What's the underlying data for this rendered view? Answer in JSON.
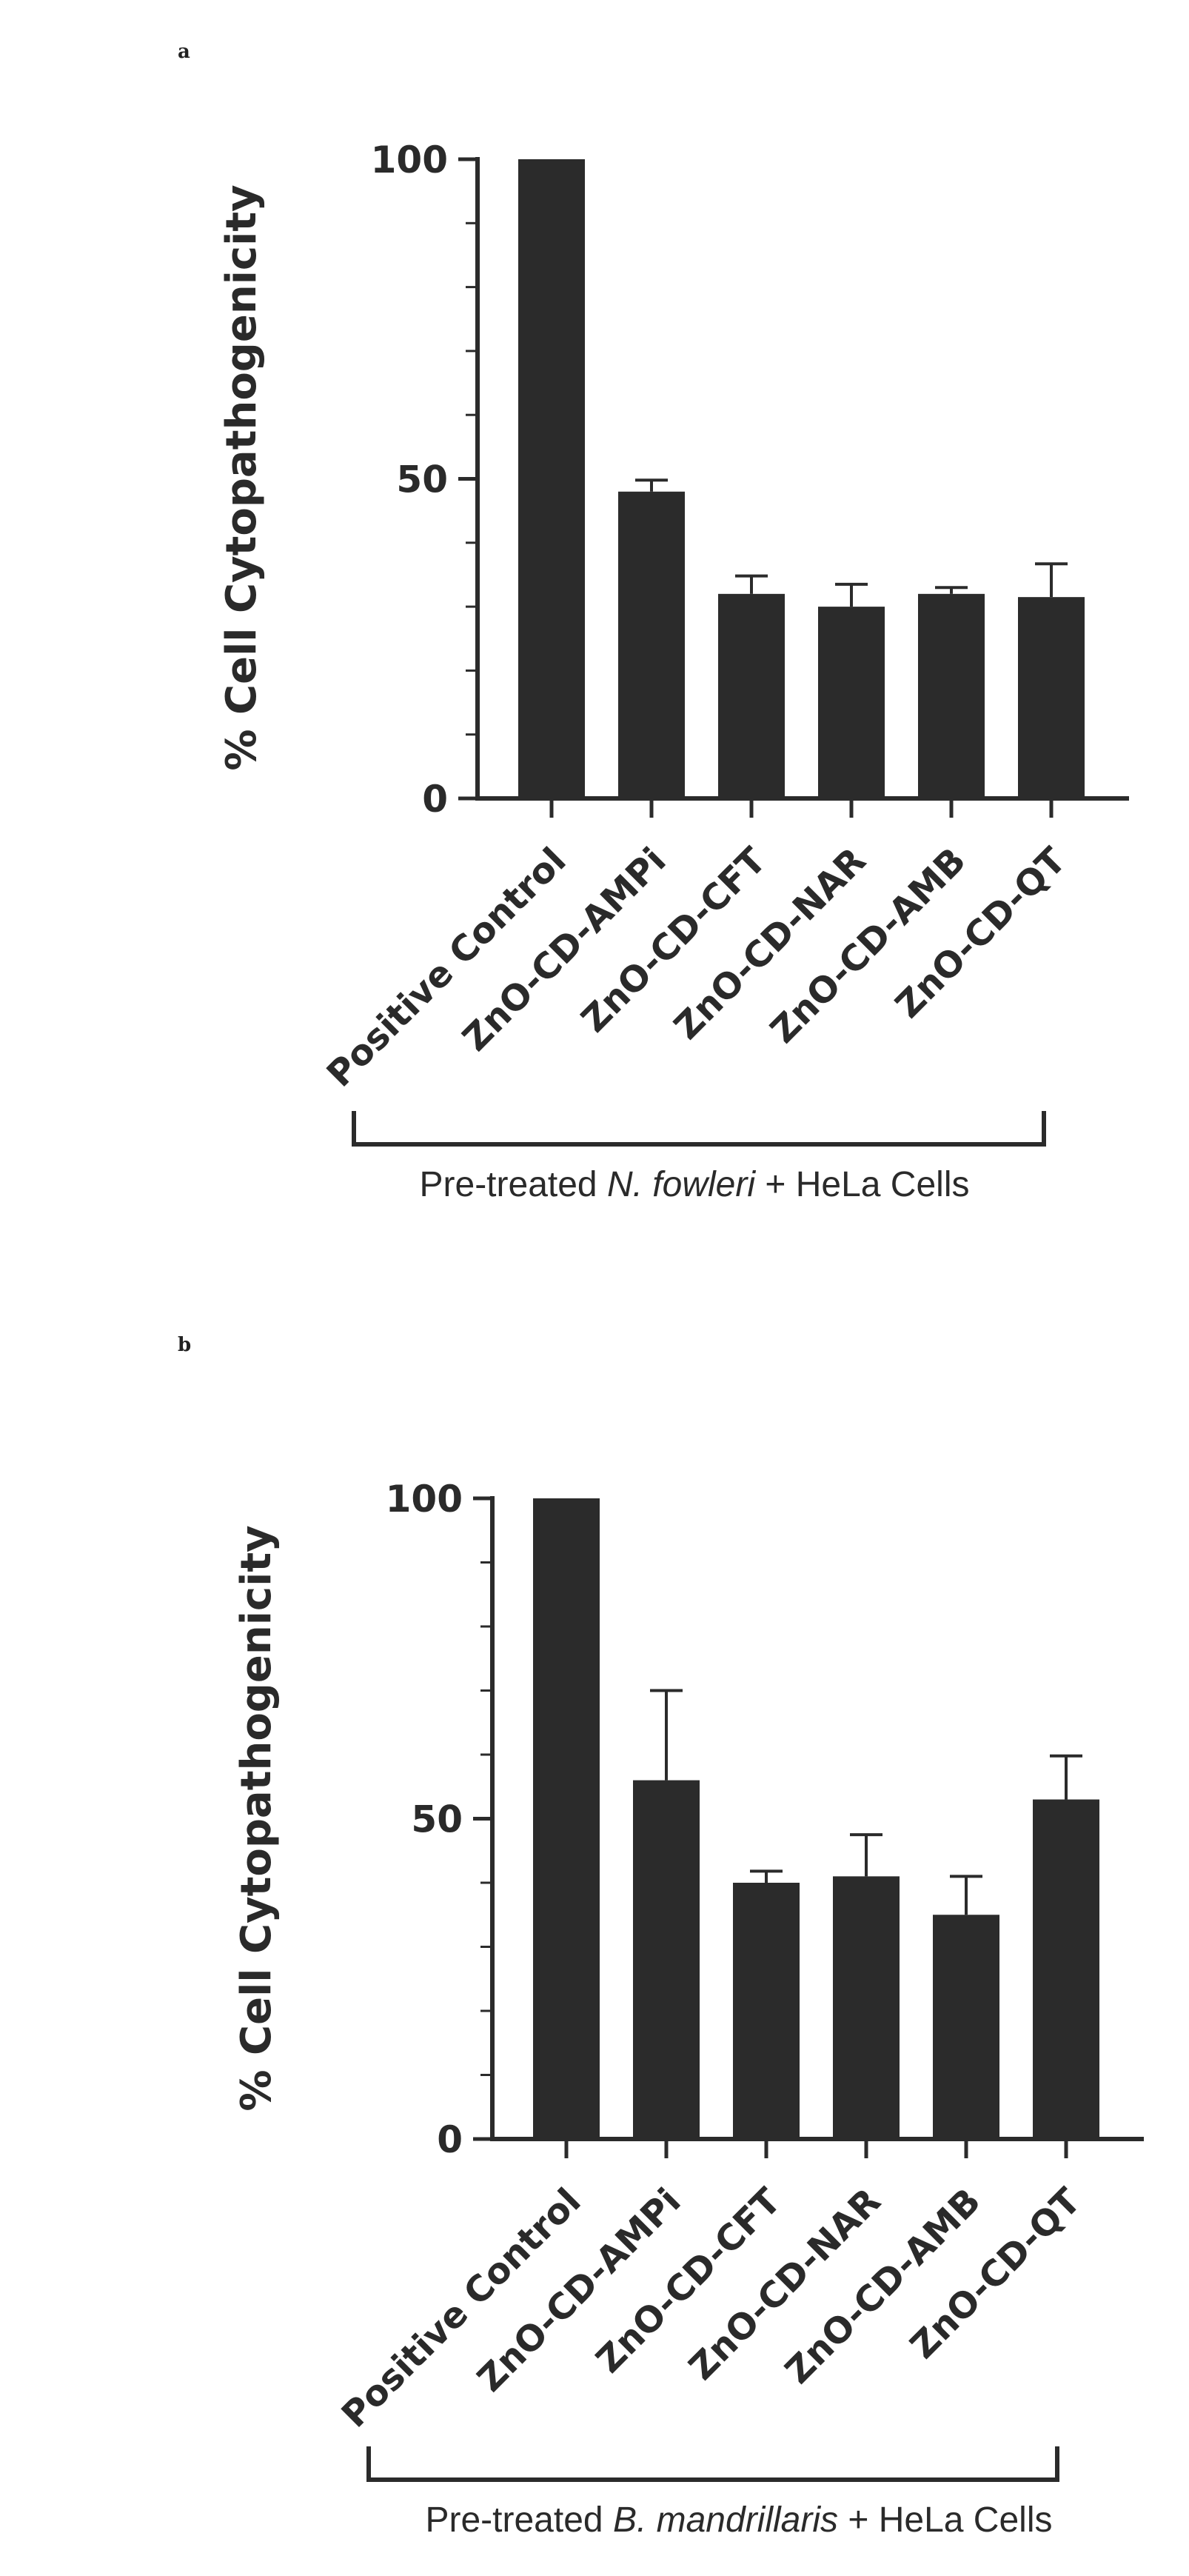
{
  "chart_data": [
    {
      "panel": "a",
      "type": "bar",
      "categories": [
        "Positive Control",
        "ZnO-CD-AMPi",
        "ZnO-CD-CFT",
        "ZnO-CD-NAR",
        "ZnO-CD-AMB",
        "ZnO-CD-QT"
      ],
      "values": [
        100,
        48,
        32,
        30,
        32,
        31.5
      ],
      "errors": [
        0,
        1.8,
        2.8,
        3.5,
        1.0,
        5.2
      ],
      "ylabel": "% Cell Cytopathogenicity",
      "ylim": [
        0,
        100
      ],
      "yticks": [
        "0",
        "50",
        "100"
      ],
      "group_label": {
        "prefix": "Pre-treated ",
        "organism": "N. fowleri",
        "suffix": " + HeLa Cells"
      }
    },
    {
      "panel": "b",
      "type": "bar",
      "categories": [
        "Positive Control",
        "ZnO-CD-AMPi",
        "ZnO-CD-CFT",
        "ZnO-CD-NAR",
        "ZnO-CD-AMB",
        "ZnO-CD-QT"
      ],
      "values": [
        100,
        56,
        40,
        41,
        35,
        53
      ],
      "errors": [
        0,
        14,
        1.8,
        6.5,
        6,
        6.8
      ],
      "ylabel": "% Cell Cytopathogenicity",
      "ylim": [
        0,
        100
      ],
      "yticks": [
        "0",
        "50",
        "100"
      ],
      "group_label": {
        "prefix": "Pre-treated ",
        "organism": "B. mandrillaris",
        "suffix": " + HeLa Cells"
      }
    }
  ],
  "colors": {
    "bar": "#2b2b2b",
    "axis": "#2b2b2b",
    "text": "#2a2a2a"
  }
}
